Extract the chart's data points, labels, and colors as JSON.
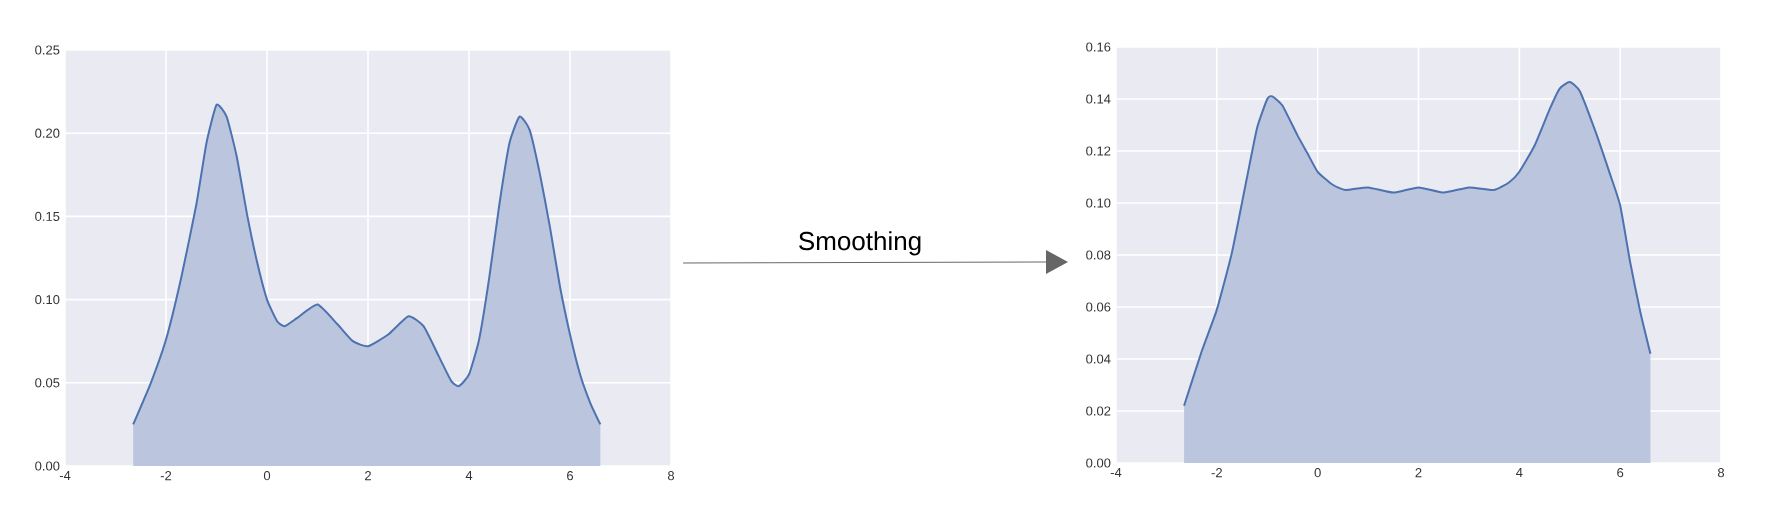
{
  "chart_data": [
    {
      "type": "area",
      "grid": true,
      "annotations": [
        "Smoothing"
      ],
      "xlim": [
        -4,
        8
      ],
      "xticks": [
        -4,
        -2,
        0,
        2,
        4,
        6,
        8
      ],
      "ylim": [
        0,
        0.25
      ],
      "yticks": [
        {
          "value": 0,
          "label": "0.00"
        },
        {
          "value": 0.05,
          "label": "0.05"
        },
        {
          "value": 0.1,
          "label": "0.10"
        },
        {
          "value": 0.15,
          "label": "0.15"
        },
        {
          "value": 0.2,
          "label": "0.20"
        },
        {
          "value": 0.25,
          "label": "0.25"
        }
      ],
      "series": [
        {
          "color": "#4c72b0",
          "x": [
            -2.65,
            -2.3,
            -2.0,
            -1.7,
            -1.4,
            -1.2,
            -1.0,
            -0.8,
            -0.6,
            -0.4,
            -0.2,
            0,
            0.2,
            0.35,
            0.6,
            1.0,
            1.4,
            1.7,
            2.0,
            2.4,
            2.8,
            3.1,
            3.4,
            3.65,
            3.8,
            4.0,
            4.2,
            4.4,
            4.6,
            4.8,
            5.0,
            5.2,
            5.4,
            5.6,
            5.8,
            6.0,
            6.2,
            6.4,
            6.6
          ],
          "values": [
            0.025,
            0.05,
            0.076,
            0.113,
            0.157,
            0.194,
            0.217,
            0.21,
            0.186,
            0.152,
            0.123,
            0.1,
            0.087,
            0.084,
            0.089,
            0.097,
            0.085,
            0.075,
            0.072,
            0.079,
            0.09,
            0.084,
            0.066,
            0.051,
            0.048,
            0.055,
            0.076,
            0.113,
            0.157,
            0.194,
            0.21,
            0.202,
            0.176,
            0.144,
            0.108,
            0.079,
            0.055,
            0.038,
            0.025
          ]
        }
      ]
    },
    {
      "type": "area",
      "grid": true,
      "xlim": [
        -4,
        8
      ],
      "xticks": [
        -4,
        -2,
        0,
        2,
        4,
        6,
        8
      ],
      "ylim": [
        0,
        0.16
      ],
      "yticks": [
        {
          "value": 0,
          "label": "0.00"
        },
        {
          "value": 0.02,
          "label": "0.02"
        },
        {
          "value": 0.04,
          "label": "0.04"
        },
        {
          "value": 0.06,
          "label": "0.06"
        },
        {
          "value": 0.08,
          "label": "0.08"
        },
        {
          "value": 0.1,
          "label": "0.10"
        },
        {
          "value": 0.12,
          "label": "0.12"
        },
        {
          "value": 0.14,
          "label": "0.14"
        },
        {
          "value": 0.16,
          "label": "0.16"
        }
      ],
      "series": [
        {
          "color": "#4c72b0",
          "x": [
            -2.65,
            -2.3,
            -2.0,
            -1.7,
            -1.4,
            -1.2,
            -1.0,
            -0.9,
            -0.7,
            -0.4,
            -0.2,
            0,
            0.3,
            0.55,
            1.0,
            1.5,
            2.0,
            2.5,
            3.0,
            3.5,
            3.8,
            4.0,
            4.3,
            4.6,
            4.8,
            5.0,
            5.2,
            5.5,
            5.8,
            6.0,
            6.2,
            6.4,
            6.6
          ],
          "values": [
            0.022,
            0.043,
            0.059,
            0.081,
            0.11,
            0.129,
            0.14,
            0.141,
            0.1375,
            0.126,
            0.119,
            0.112,
            0.107,
            0.105,
            0.106,
            0.104,
            0.106,
            0.104,
            0.106,
            0.105,
            0.108,
            0.112,
            0.122,
            0.136,
            0.144,
            0.1465,
            0.143,
            0.128,
            0.111,
            0.099,
            0.077,
            0.058,
            0.042
          ]
        }
      ]
    }
  ]
}
